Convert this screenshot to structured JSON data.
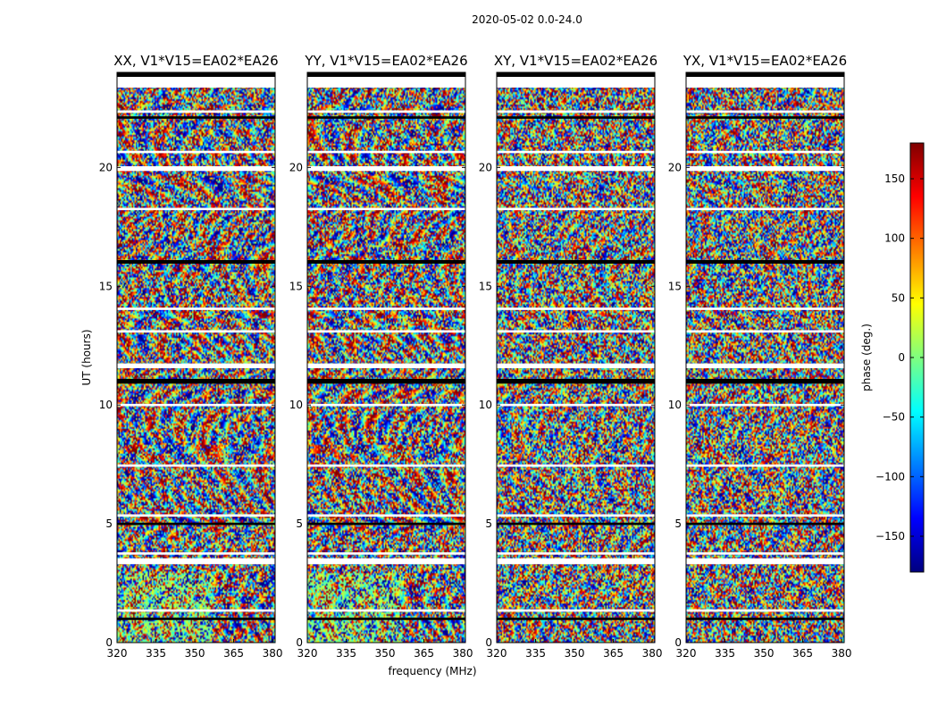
{
  "chart_data": {
    "type": "heatmap",
    "suptitle": "2020-05-02 0.0-24.0",
    "xlabel": "frequency (MHz)",
    "ylabel": "UT (hours)",
    "xlim": [
      320,
      381
    ],
    "ylim": [
      0,
      24.0
    ],
    "xticks": [
      320,
      335,
      350,
      365,
      380
    ],
    "yticks": [
      0,
      5,
      10,
      15,
      20
    ],
    "colorbar": {
      "label": "phase (deg.)",
      "range": [
        -180,
        180
      ],
      "ticks": [
        150,
        100,
        50,
        0,
        -50,
        -100,
        -150
      ],
      "tick_labels": [
        "150",
        "100",
        "50",
        "0",
        "−50",
        "−100",
        "−150"
      ],
      "colormap": "jet",
      "colors": [
        "#00007f",
        "#0000ff",
        "#007fff",
        "#00ffff",
        "#7fff7f",
        "#ffff00",
        "#ff7f00",
        "#ff0000",
        "#7f0000"
      ]
    },
    "panels": [
      {
        "title": "XX, V1*V15=EA02*EA26",
        "polarization": "XX"
      },
      {
        "title": "YY, V1*V15=EA02*EA26",
        "polarization": "YY"
      },
      {
        "title": "XY, V1*V15=EA02*EA26",
        "polarization": "XY"
      },
      {
        "title": "YX, V1*V15=EA02*EA26",
        "polarization": "YX"
      }
    ],
    "flagged_gaps_hours": [
      [
        0.95,
        1.05
      ],
      [
        1.3,
        1.4
      ],
      [
        3.3,
        3.55
      ],
      [
        3.7,
        3.8
      ],
      [
        4.95,
        5.05
      ],
      [
        5.3,
        5.4
      ],
      [
        7.4,
        7.5
      ],
      [
        9.95,
        10.05
      ],
      [
        10.9,
        11.1
      ],
      [
        11.55,
        11.75
      ],
      [
        13.05,
        13.15
      ],
      [
        14.0,
        14.1
      ],
      [
        15.95,
        16.1
      ],
      [
        18.2,
        18.3
      ],
      [
        19.85,
        20.05
      ],
      [
        20.6,
        20.7
      ],
      [
        22.05,
        22.15
      ],
      [
        22.3,
        22.4
      ],
      [
        23.5,
        23.7
      ]
    ]
  }
}
